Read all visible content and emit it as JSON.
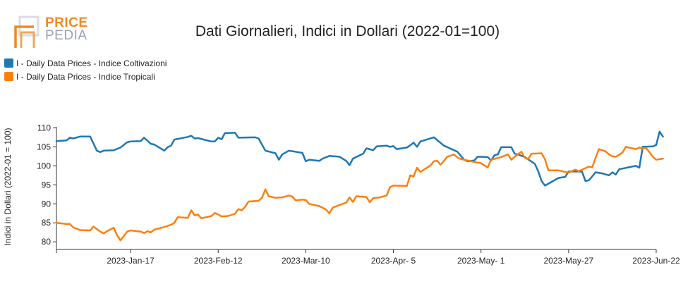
{
  "logo": {
    "word_top": "PRICE",
    "word_bottom": "PEDIA"
  },
  "chart_data": {
    "type": "line",
    "title": "Dati Giornalieri, Indici in Dollari (2022-01=100)",
    "ylabel": "Indici in Dollari (2022-01 = 100)",
    "xlabel": "",
    "ylim": [
      78,
      111
    ],
    "yticks": [
      80,
      85,
      90,
      95,
      100,
      105,
      110
    ],
    "xlim": [
      "2022-12-26",
      "2023-06-22"
    ],
    "xtick_labels": [
      {
        "date": "2023-01-17",
        "label": "2023-Jan-17"
      },
      {
        "date": "2023-02-12",
        "label": "2023-Feb-12"
      },
      {
        "date": "2023-03-10",
        "label": "2023-Mar-10"
      },
      {
        "date": "2023-04-05",
        "label": "2023-Apr- 5"
      },
      {
        "date": "2023-05-01",
        "label": "2023-May- 1"
      },
      {
        "date": "2023-05-27",
        "label": "2023-May-27"
      },
      {
        "date": "2023-06-22",
        "label": "2023-Jun-22"
      }
    ],
    "legend_position": "top-left",
    "series": [
      {
        "name": "I - Daily Data Prices - Indice Coltivazioni",
        "color": "#1f77b4",
        "points": [
          [
            "2022-12-26",
            106.5
          ],
          [
            "2022-12-29",
            106.7
          ],
          [
            "2022-12-30",
            107.4
          ],
          [
            "2022-12-31",
            107.2
          ],
          [
            "2023-01-02",
            107.7
          ],
          [
            "2023-01-05",
            107.7
          ],
          [
            "2023-01-07",
            104.0
          ],
          [
            "2023-01-08",
            103.6
          ],
          [
            "2023-01-09",
            104.0
          ],
          [
            "2023-01-12",
            104.1
          ],
          [
            "2023-01-14",
            104.8
          ],
          [
            "2023-01-16",
            106.2
          ],
          [
            "2023-01-17",
            106.4
          ],
          [
            "2023-01-20",
            106.5
          ],
          [
            "2023-01-21",
            107.4
          ],
          [
            "2023-01-23",
            105.8
          ],
          [
            "2023-01-24",
            105.6
          ],
          [
            "2023-01-27",
            104.0
          ],
          [
            "2023-01-28",
            104.9
          ],
          [
            "2023-01-29",
            105.3
          ],
          [
            "2023-01-30",
            106.9
          ],
          [
            "2023-02-03",
            107.6
          ],
          [
            "2023-02-04",
            107.9
          ],
          [
            "2023-02-05",
            107.2
          ],
          [
            "2023-02-06",
            107.3
          ],
          [
            "2023-02-10",
            106.4
          ],
          [
            "2023-02-11",
            106.4
          ],
          [
            "2023-02-12",
            107.4
          ],
          [
            "2023-02-13",
            107.0
          ],
          [
            "2023-02-14",
            108.6
          ],
          [
            "2023-02-17",
            108.7
          ],
          [
            "2023-02-18",
            107.4
          ],
          [
            "2023-02-23",
            107.5
          ],
          [
            "2023-02-24",
            107.2
          ],
          [
            "2023-02-26",
            104.0
          ],
          [
            "2023-03-01",
            103.3
          ],
          [
            "2023-03-02",
            101.6
          ],
          [
            "2023-03-03",
            103.0
          ],
          [
            "2023-03-05",
            104.0
          ],
          [
            "2023-03-09",
            103.4
          ],
          [
            "2023-03-10",
            101.2
          ],
          [
            "2023-03-11",
            101.6
          ],
          [
            "2023-03-14",
            101.3
          ],
          [
            "2023-03-15",
            101.9
          ],
          [
            "2023-03-17",
            102.6
          ],
          [
            "2023-03-20",
            102.4
          ],
          [
            "2023-03-22",
            101.3
          ],
          [
            "2023-03-23",
            100.2
          ],
          [
            "2023-03-24",
            101.9
          ],
          [
            "2023-03-27",
            103.2
          ],
          [
            "2023-03-28",
            104.6
          ],
          [
            "2023-03-30",
            104.1
          ],
          [
            "2023-03-31",
            105.1
          ],
          [
            "2023-04-03",
            105.3
          ],
          [
            "2023-04-04",
            105.0
          ],
          [
            "2023-04-05",
            105.2
          ],
          [
            "2023-04-06",
            104.4
          ],
          [
            "2023-04-09",
            104.8
          ],
          [
            "2023-04-10",
            105.4
          ],
          [
            "2023-04-11",
            106.1
          ],
          [
            "2023-04-12",
            105.0
          ],
          [
            "2023-04-13",
            106.4
          ],
          [
            "2023-04-17",
            107.5
          ],
          [
            "2023-04-20",
            105.3
          ],
          [
            "2023-04-23",
            104.1
          ],
          [
            "2023-04-24",
            103.7
          ],
          [
            "2023-04-26",
            101.6
          ],
          [
            "2023-04-27",
            101.2
          ],
          [
            "2023-04-29",
            101.4
          ],
          [
            "2023-04-30",
            102.4
          ],
          [
            "2023-05-03",
            102.3
          ],
          [
            "2023-05-04",
            101.4
          ],
          [
            "2023-05-05",
            102.8
          ],
          [
            "2023-05-06",
            103.0
          ],
          [
            "2023-05-07",
            104.9
          ],
          [
            "2023-05-10",
            104.9
          ],
          [
            "2023-05-11",
            103.2
          ],
          [
            "2023-05-12",
            103.0
          ],
          [
            "2023-05-14",
            102.3
          ],
          [
            "2023-05-17",
            100.5
          ],
          [
            "2023-05-18",
            98.5
          ],
          [
            "2023-05-19",
            96.0
          ],
          [
            "2023-05-20",
            94.8
          ],
          [
            "2023-05-24",
            96.8
          ],
          [
            "2023-05-26",
            97.1
          ],
          [
            "2023-05-27",
            98.5
          ],
          [
            "2023-05-31",
            98.5
          ],
          [
            "2023-06-01",
            96.0
          ],
          [
            "2023-06-02",
            96.2
          ],
          [
            "2023-06-03",
            97.2
          ],
          [
            "2023-06-04",
            98.3
          ],
          [
            "2023-06-06",
            98.0
          ],
          [
            "2023-06-08",
            97.5
          ],
          [
            "2023-06-09",
            98.3
          ],
          [
            "2023-06-10",
            97.7
          ],
          [
            "2023-06-11",
            99.1
          ],
          [
            "2023-06-16",
            100.0
          ],
          [
            "2023-06-17",
            99.5
          ],
          [
            "2023-06-18",
            105.0
          ],
          [
            "2023-06-21",
            105.1
          ],
          [
            "2023-06-22",
            105.5
          ],
          [
            "2023-06-23",
            109.0
          ],
          [
            "2023-06-24",
            107.7
          ]
        ]
      },
      {
        "name": "I - Daily Data Prices - Indice Tropicali",
        "color": "#ff7f0e",
        "points": [
          [
            "2022-12-26",
            85.0
          ],
          [
            "2022-12-29",
            84.7
          ],
          [
            "2022-12-30",
            84.7
          ],
          [
            "2022-12-31",
            83.8
          ],
          [
            "2023-01-02",
            83.1
          ],
          [
            "2023-01-05",
            83.0
          ],
          [
            "2023-01-06",
            84.0
          ],
          [
            "2023-01-08",
            82.7
          ],
          [
            "2023-01-09",
            82.2
          ],
          [
            "2023-01-10",
            82.8
          ],
          [
            "2023-01-12",
            83.7
          ],
          [
            "2023-01-13",
            81.7
          ],
          [
            "2023-01-14",
            80.4
          ],
          [
            "2023-01-16",
            82.7
          ],
          [
            "2023-01-17",
            83.0
          ],
          [
            "2023-01-20",
            82.7
          ],
          [
            "2023-01-21",
            82.3
          ],
          [
            "2023-01-22",
            82.8
          ],
          [
            "2023-01-23",
            82.5
          ],
          [
            "2023-01-24",
            83.2
          ],
          [
            "2023-01-27",
            83.9
          ],
          [
            "2023-01-29",
            84.5
          ],
          [
            "2023-01-30",
            85.0
          ],
          [
            "2023-01-31",
            86.5
          ],
          [
            "2023-02-03",
            86.3
          ],
          [
            "2023-02-04",
            88.3
          ],
          [
            "2023-02-05",
            87.0
          ],
          [
            "2023-02-06",
            87.2
          ],
          [
            "2023-02-07",
            86.2
          ],
          [
            "2023-02-10",
            86.8
          ],
          [
            "2023-02-11",
            87.6
          ],
          [
            "2023-02-12",
            87.2
          ],
          [
            "2023-02-13",
            86.7
          ],
          [
            "2023-02-15",
            86.8
          ],
          [
            "2023-02-17",
            87.4
          ],
          [
            "2023-02-18",
            88.6
          ],
          [
            "2023-02-19",
            88.3
          ],
          [
            "2023-02-20",
            89.2
          ],
          [
            "2023-02-21",
            90.6
          ],
          [
            "2023-02-24",
            90.8
          ],
          [
            "2023-02-25",
            91.6
          ],
          [
            "2023-02-26",
            93.8
          ],
          [
            "2023-02-27",
            92.0
          ],
          [
            "2023-03-01",
            91.6
          ],
          [
            "2023-03-03",
            91.7
          ],
          [
            "2023-03-05",
            92.2
          ],
          [
            "2023-03-06",
            91.9
          ],
          [
            "2023-03-07",
            90.9
          ],
          [
            "2023-03-09",
            91.1
          ],
          [
            "2023-03-10",
            91.0
          ],
          [
            "2023-03-11",
            90.0
          ],
          [
            "2023-03-14",
            89.4
          ],
          [
            "2023-03-16",
            88.5
          ],
          [
            "2023-03-17",
            87.5
          ],
          [
            "2023-03-18",
            89.0
          ],
          [
            "2023-03-20",
            89.7
          ],
          [
            "2023-03-22",
            90.3
          ],
          [
            "2023-03-23",
            91.7
          ],
          [
            "2023-03-24",
            90.5
          ],
          [
            "2023-03-25",
            92.0
          ],
          [
            "2023-03-28",
            91.8
          ],
          [
            "2023-03-29",
            90.4
          ],
          [
            "2023-03-30",
            91.5
          ],
          [
            "2023-04-01",
            91.7
          ],
          [
            "2023-04-03",
            92.2
          ],
          [
            "2023-04-04",
            94.4
          ],
          [
            "2023-04-05",
            94.8
          ],
          [
            "2023-04-09",
            94.7
          ],
          [
            "2023-04-10",
            97.5
          ],
          [
            "2023-04-11",
            97.2
          ],
          [
            "2023-04-12",
            99.5
          ],
          [
            "2023-04-13",
            98.4
          ],
          [
            "2023-04-16",
            100.1
          ],
          [
            "2023-04-17",
            101.2
          ],
          [
            "2023-04-18",
            101.3
          ],
          [
            "2023-04-19",
            100.3
          ],
          [
            "2023-04-20",
            101.3
          ],
          [
            "2023-04-21",
            102.4
          ],
          [
            "2023-04-23",
            103.0
          ],
          [
            "2023-04-24",
            102.2
          ],
          [
            "2023-04-25",
            101.8
          ],
          [
            "2023-04-29",
            101.0
          ],
          [
            "2023-05-01",
            100.7
          ],
          [
            "2023-05-02",
            100.1
          ],
          [
            "2023-05-03",
            99.6
          ],
          [
            "2023-05-04",
            101.6
          ],
          [
            "2023-05-07",
            102.3
          ],
          [
            "2023-05-09",
            103.0
          ],
          [
            "2023-05-10",
            101.6
          ],
          [
            "2023-05-11",
            102.4
          ],
          [
            "2023-05-13",
            103.7
          ],
          [
            "2023-05-14",
            102.1
          ],
          [
            "2023-05-15",
            101.8
          ],
          [
            "2023-05-16",
            103.2
          ],
          [
            "2023-05-19",
            103.3
          ],
          [
            "2023-05-20",
            101.7
          ],
          [
            "2023-05-21",
            98.8
          ],
          [
            "2023-05-24",
            98.8
          ],
          [
            "2023-05-26",
            98.4
          ],
          [
            "2023-05-27",
            98.2
          ],
          [
            "2023-05-29",
            99.0
          ],
          [
            "2023-05-30",
            98.6
          ],
          [
            "2023-06-01",
            99.4
          ],
          [
            "2023-06-02",
            99.8
          ],
          [
            "2023-06-03",
            99.6
          ],
          [
            "2023-06-04",
            102.0
          ],
          [
            "2023-06-05",
            104.4
          ],
          [
            "2023-06-07",
            103.8
          ],
          [
            "2023-06-08",
            103.0
          ],
          [
            "2023-06-09",
            102.5
          ],
          [
            "2023-06-10",
            102.4
          ],
          [
            "2023-06-11",
            102.9
          ],
          [
            "2023-06-12",
            103.5
          ],
          [
            "2023-06-13",
            105.0
          ],
          [
            "2023-06-16",
            104.4
          ],
          [
            "2023-06-17",
            104.8
          ],
          [
            "2023-06-18",
            104.6
          ],
          [
            "2023-06-19",
            104.7
          ],
          [
            "2023-06-21",
            102.4
          ],
          [
            "2023-06-22",
            101.6
          ],
          [
            "2023-06-24",
            101.9
          ]
        ]
      }
    ]
  }
}
